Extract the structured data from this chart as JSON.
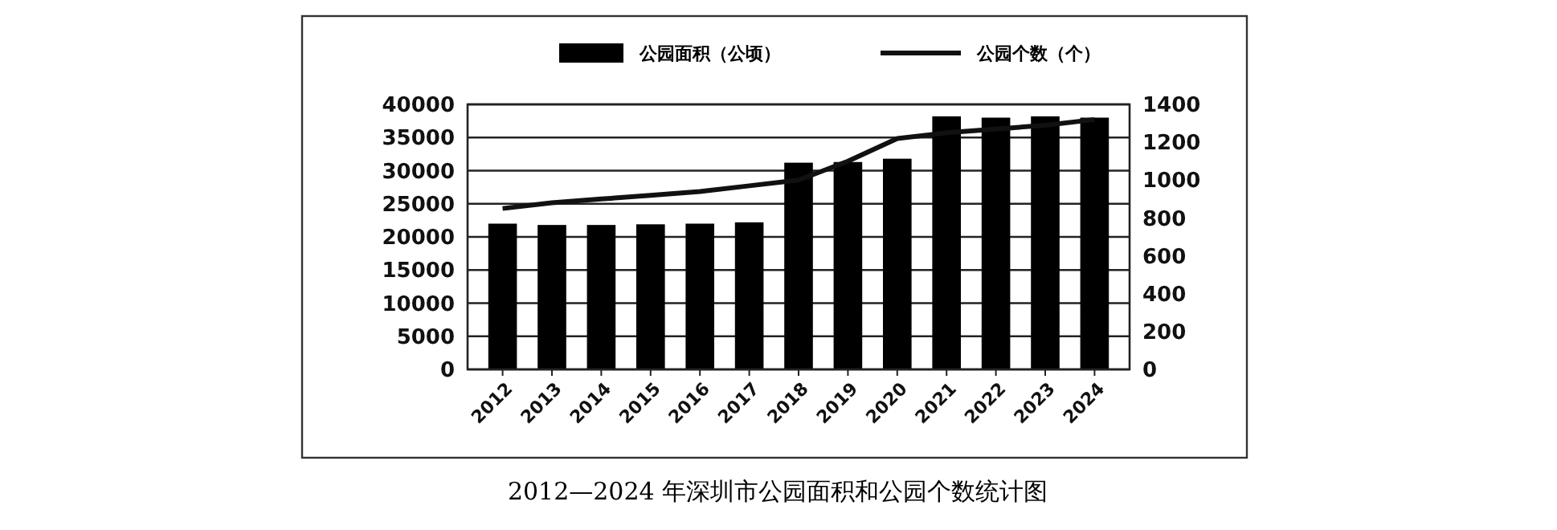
{
  "chart_data": {
    "type": "bar",
    "title": "2012—2024 年深圳市公园面积和公园个数统计图",
    "categories": [
      "2012",
      "2013",
      "2014",
      "2015",
      "2016",
      "2017",
      "2018",
      "2019",
      "2020",
      "2021",
      "2022",
      "2023",
      "2024"
    ],
    "series": [
      {
        "name": "公园面积（公顷）",
        "color": "#000000",
        "values": [
          22000,
          21800,
          21800,
          21900,
          22000,
          22200,
          31200,
          31300,
          31800,
          38200,
          38000,
          38200,
          38000
        ]
      },
      {
        "name": "公园个数（个）",
        "type": "line",
        "axis": "y2",
        "color": "#111111",
        "values": [
          850,
          880,
          900,
          920,
          940,
          970,
          1000,
          1100,
          1220,
          1250,
          1270,
          1290,
          1320
        ]
      }
    ],
    "ylim": [
      0,
      40000
    ],
    "yticks": [
      0,
      5000,
      10000,
      15000,
      20000,
      25000,
      30000,
      35000,
      40000
    ],
    "y2lim": [
      0,
      1400
    ],
    "y2ticks": [
      0,
      200,
      400,
      600,
      800,
      1000,
      1200,
      1400
    ],
    "grid": "y",
    "legend": "top",
    "marker": "none",
    "line_style": "solid"
  }
}
